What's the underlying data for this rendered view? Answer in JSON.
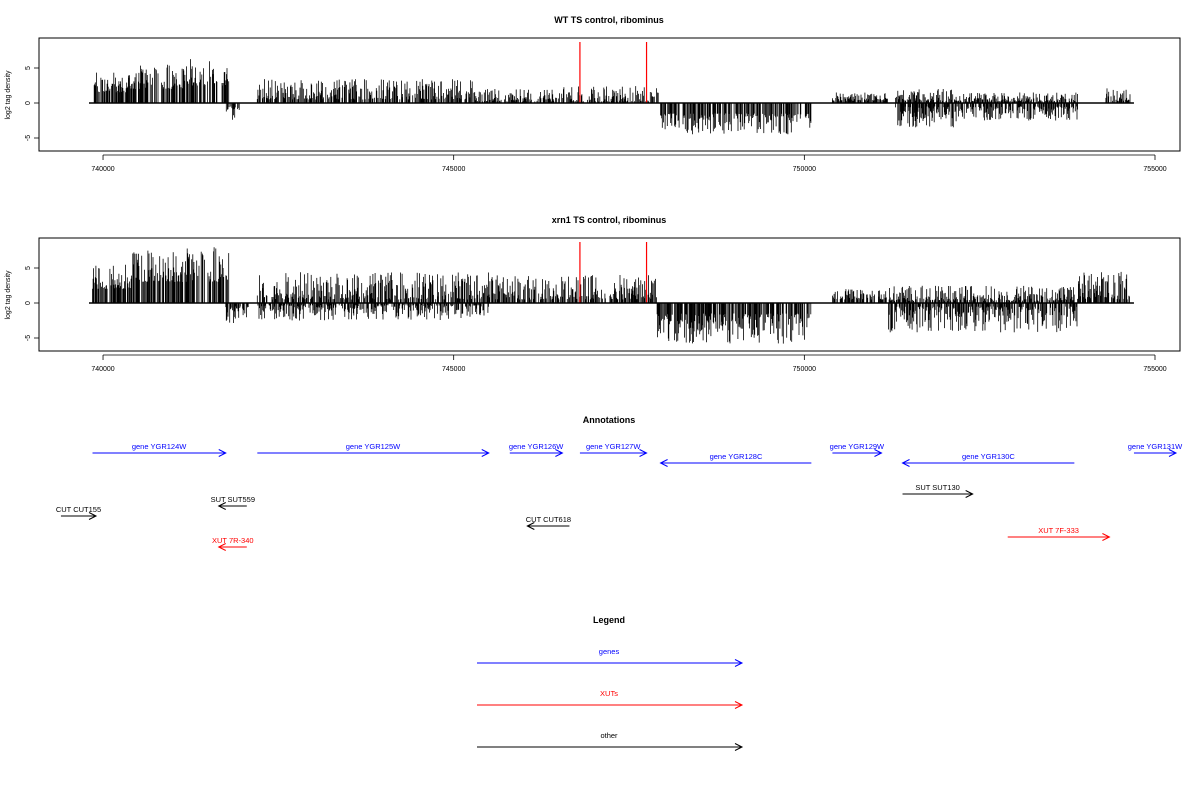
{
  "chart_data": [
    {
      "type": "bar",
      "title": "WT TS control, ribominus",
      "ylabel": "log2 tag density",
      "xlabel": "",
      "xlim": [
        739600,
        755400
      ],
      "ylim": [
        -6.5,
        9
      ],
      "xticks": [
        740000,
        745000,
        750000,
        755000
      ],
      "xtick_labels": [
        "740000",
        "745000",
        "750000",
        "755000"
      ],
      "yticks": [
        -5,
        0,
        5
      ],
      "ytick_labels": [
        "-5",
        "0",
        "5"
      ],
      "markers": [
        746800,
        747750
      ],
      "segments": [
        {
          "from": 739850,
          "to": 740400,
          "sign": 1,
          "min": 1.5,
          "max": 4.5
        },
        {
          "from": 740400,
          "to": 741200,
          "sign": 1,
          "min": 2,
          "max": 5.5
        },
        {
          "from": 741200,
          "to": 741800,
          "sign": 1,
          "min": 2.5,
          "max": 6.5
        },
        {
          "from": 741750,
          "to": 741950,
          "sign": -1,
          "min": 0.5,
          "max": 2.5
        },
        {
          "from": 742200,
          "to": 745300,
          "sign": 1,
          "min": 0.5,
          "max": 3.5
        },
        {
          "from": 745300,
          "to": 746500,
          "sign": 1,
          "min": 0.2,
          "max": 2
        },
        {
          "from": 746500,
          "to": 747950,
          "sign": 1,
          "min": 0.2,
          "max": 2.5
        },
        {
          "from": 747950,
          "to": 750100,
          "sign": -1,
          "min": 1.5,
          "max": 4.5
        },
        {
          "from": 750400,
          "to": 751200,
          "sign": 1,
          "min": 0.3,
          "max": 1.5
        },
        {
          "from": 751300,
          "to": 752200,
          "sign": -1,
          "min": 0.5,
          "max": 3.5
        },
        {
          "from": 751300,
          "to": 752200,
          "sign": 1,
          "min": 0.3,
          "max": 2
        },
        {
          "from": 752200,
          "to": 753900,
          "sign": -1,
          "min": 0.5,
          "max": 2.5
        },
        {
          "from": 752200,
          "to": 753900,
          "sign": 1,
          "min": 0.2,
          "max": 1.5
        },
        {
          "from": 754300,
          "to": 754650,
          "sign": 1,
          "min": 0.3,
          "max": 2.2
        }
      ]
    },
    {
      "type": "bar",
      "title": "xrn1 TS control, ribominus",
      "ylabel": "log2 tag density",
      "xlabel": "",
      "xlim": [
        739600,
        755400
      ],
      "ylim": [
        -6.5,
        9
      ],
      "xticks": [
        740000,
        745000,
        750000,
        755000
      ],
      "xtick_labels": [
        "740000",
        "745000",
        "750000",
        "755000"
      ],
      "yticks": [
        -5,
        0,
        5
      ],
      "ytick_labels": [
        "-5",
        "0",
        "5"
      ],
      "markers": [
        746800,
        747750
      ],
      "segments": [
        {
          "from": 739850,
          "to": 740400,
          "sign": 1,
          "min": 2,
          "max": 5.5
        },
        {
          "from": 740400,
          "to": 741200,
          "sign": 1,
          "min": 3,
          "max": 7.5
        },
        {
          "from": 741200,
          "to": 741800,
          "sign": 1,
          "min": 3,
          "max": 8
        },
        {
          "from": 741750,
          "to": 742100,
          "sign": -1,
          "min": 0.5,
          "max": 3
        },
        {
          "from": 742200,
          "to": 745500,
          "sign": 1,
          "min": 0.5,
          "max": 4.5
        },
        {
          "from": 742200,
          "to": 745500,
          "sign": -1,
          "min": 0.3,
          "max": 2.5
        },
        {
          "from": 745500,
          "to": 747900,
          "sign": 1,
          "min": 0.5,
          "max": 4
        },
        {
          "from": 747900,
          "to": 750100,
          "sign": -1,
          "min": 1.5,
          "max": 5.8
        },
        {
          "from": 750400,
          "to": 751200,
          "sign": 1,
          "min": 0.5,
          "max": 2
        },
        {
          "from": 751200,
          "to": 753900,
          "sign": -1,
          "min": 0.5,
          "max": 4.2
        },
        {
          "from": 751200,
          "to": 753900,
          "sign": 1,
          "min": 0.3,
          "max": 2.5
        },
        {
          "from": 753900,
          "to": 754650,
          "sign": 1,
          "min": 0.5,
          "max": 4.5
        }
      ]
    }
  ],
  "annotations": {
    "title": "Annotations",
    "items": [
      {
        "label": "gene YGR124W",
        "from": 739850,
        "to": 741750,
        "strand": "+",
        "color": "#0000ff",
        "row": 0
      },
      {
        "label": "gene YGR125W",
        "from": 742200,
        "to": 745500,
        "strand": "+",
        "color": "#0000ff",
        "row": 0
      },
      {
        "label": "gene YGR126W",
        "from": 745800,
        "to": 746550,
        "strand": "+",
        "color": "#0000ff",
        "row": 0
      },
      {
        "label": "gene YGR127W",
        "from": 746800,
        "to": 747750,
        "strand": "+",
        "color": "#0000ff",
        "row": 0
      },
      {
        "label": "gene YGR128C",
        "from": 747950,
        "to": 750100,
        "strand": "-",
        "color": "#0000ff",
        "row": 1
      },
      {
        "label": "gene YGR129W",
        "from": 750400,
        "to": 751100,
        "strand": "+",
        "color": "#0000ff",
        "row": 0
      },
      {
        "label": "gene YGR130C",
        "from": 751400,
        "to": 753850,
        "strand": "-",
        "color": "#0000ff",
        "row": 1
      },
      {
        "label": "gene YGR131W",
        "from": 754700,
        "to": 755300,
        "strand": "+",
        "color": "#0000ff",
        "row": 0
      },
      {
        "label": "SUT SUT559",
        "from": 741650,
        "to": 742050,
        "strand": "-",
        "color": "#000000",
        "row": 2
      },
      {
        "label": "SUT SUT130",
        "from": 751400,
        "to": 752400,
        "strand": "+",
        "color": "#000000",
        "row": 3
      },
      {
        "label": "CUT CUT155",
        "from": 739400,
        "to": 739900,
        "strand": "+",
        "color": "#000000",
        "row": 4
      },
      {
        "label": "CUT CUT618",
        "from": 746050,
        "to": 746650,
        "strand": "-",
        "color": "#000000",
        "row": 5
      },
      {
        "label": "XUT 7R-340",
        "from": 741650,
        "to": 742050,
        "strand": "-",
        "color": "#ff0000",
        "row": 6
      },
      {
        "label": "XUT 7F-333",
        "from": 752900,
        "to": 754350,
        "strand": "+",
        "color": "#ff0000",
        "row": 7
      }
    ]
  },
  "legend": {
    "title": "Legend",
    "items": [
      {
        "label": "genes",
        "color": "#0000ff"
      },
      {
        "label": "XUTs",
        "color": "#ff0000"
      },
      {
        "label": "other",
        "color": "#000000"
      }
    ]
  },
  "colors": {
    "signal": "#000000",
    "marker": "#ff0000"
  }
}
